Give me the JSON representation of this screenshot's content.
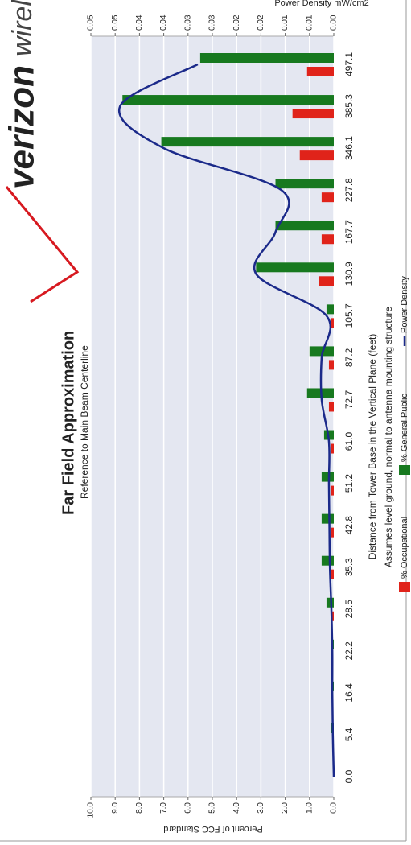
{
  "logo": {
    "brand": "verizon",
    "suffix": "wireless"
  },
  "chart_data": {
    "type": "bar",
    "title": "Far Field Approximation",
    "subtitle": "Reference to Main Beam Centerline",
    "x_label": "Distance from Tower Base in the Vertical Plane (feet)",
    "note": "Assumes level ground, normal to antenna mounting structure",
    "y_label": "Percent of FCC Standard",
    "y2_label": "Power Density mW/cm2",
    "categories": [
      "0.0",
      "5.4",
      "16.4",
      "22.2",
      "28.5",
      "35.3",
      "42.8",
      "51.2",
      "61.0",
      "72.7",
      "87.2",
      "105.7",
      "130.9",
      "167.7",
      "227.8",
      "346.1",
      "385.3",
      "497.1"
    ],
    "series": [
      {
        "name": "% Occupational",
        "color": "#e0231a",
        "values": [
          0,
          0,
          0,
          0,
          0.1,
          0.1,
          0.1,
          0.1,
          0.1,
          0.2,
          0.2,
          0.1,
          0.6,
          0.5,
          0.5,
          1.4,
          1.7,
          1.1
        ]
      },
      {
        "name": "% General Public",
        "color": "#17791f",
        "values": [
          0,
          0.1,
          0.1,
          0.1,
          0.3,
          0.5,
          0.5,
          0.5,
          0.4,
          1.1,
          1.0,
          0.3,
          3.2,
          2.4,
          2.4,
          7.1,
          8.7,
          5.5
        ]
      },
      {
        "name": "Power Density",
        "type": "line",
        "axis": "y2",
        "color": "#1b2a8a",
        "values": [
          0,
          0.0002,
          0.0003,
          0.0003,
          0.0005,
          0.0008,
          0.0009,
          0.001,
          0.001,
          0.0025,
          0.0025,
          0.0015,
          0.016,
          0.012,
          0.0108,
          0.035,
          0.044,
          0.028
        ]
      }
    ],
    "ylim": [
      0,
      10
    ],
    "yticks": [
      {
        "value": 0,
        "label": "0.0"
      },
      {
        "value": 1,
        "label": "1.0"
      },
      {
        "value": 2,
        "label": "2.0"
      },
      {
        "value": 3,
        "label": "3.0"
      },
      {
        "value": 4,
        "label": "4.0"
      },
      {
        "value": 5,
        "label": "5.0"
      },
      {
        "value": 6,
        "label": "6.0"
      },
      {
        "value": 7,
        "label": "7.0"
      },
      {
        "value": 8,
        "label": "8.0"
      },
      {
        "value": 9,
        "label": "9.0"
      },
      {
        "value": 10,
        "label": "10.0"
      }
    ],
    "y2lim": [
      0,
      0.05
    ],
    "y2ticks": [
      {
        "value": 0,
        "label": "0.00"
      },
      {
        "value": 0.005,
        "label": "0.01"
      },
      {
        "value": 0.01,
        "label": "0.01"
      },
      {
        "value": 0.015,
        "label": "0.02"
      },
      {
        "value": 0.02,
        "label": "0.02"
      },
      {
        "value": 0.025,
        "label": "0.03"
      },
      {
        "value": 0.03,
        "label": "0.03"
      },
      {
        "value": 0.035,
        "label": "0.04"
      },
      {
        "value": 0.04,
        "label": "0.04"
      },
      {
        "value": 0.045,
        "label": "0.05"
      },
      {
        "value": 0.05,
        "label": "0.05"
      }
    ],
    "grid": true
  }
}
